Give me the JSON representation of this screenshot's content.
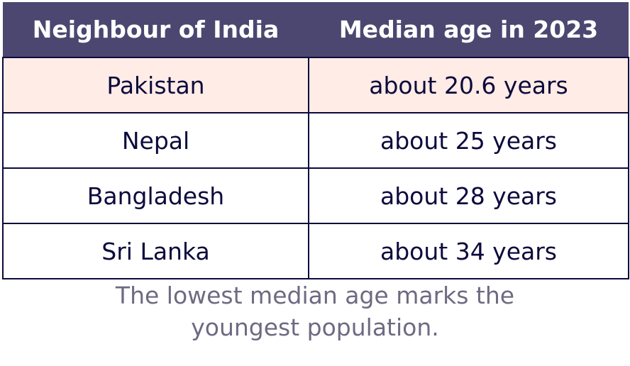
{
  "table": {
    "header": [
      "Neighbour of India",
      "Median age in 2023"
    ],
    "rows": [
      [
        "Pakistan",
        "about 20.6 years"
      ],
      [
        "Nepal",
        "about 25 years"
      ],
      [
        "Bangladesh",
        "about 28 years"
      ],
      [
        "Sri Lanka",
        "about 34 years"
      ]
    ]
  },
  "caption": "The lowest median age marks the youngest population."
}
